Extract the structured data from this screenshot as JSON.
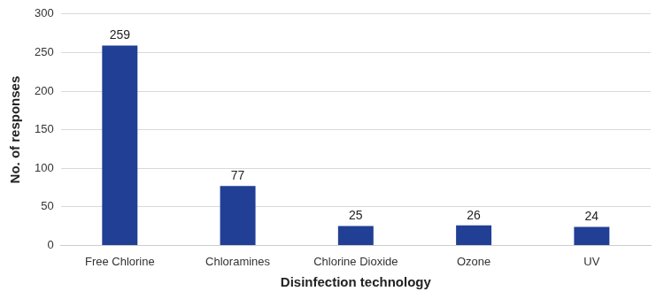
{
  "chart_data": {
    "type": "bar",
    "categories": [
      "Free Chlorine",
      "Chloramines",
      "Chlorine Dioxide",
      "Ozone",
      "UV"
    ],
    "values": [
      259,
      77,
      25,
      26,
      24
    ],
    "color": "#213f94",
    "x_label": "Disinfection technology",
    "y_label": "No. of responses",
    "ylim": [
      0,
      300
    ],
    "yticks": [
      0,
      50,
      100,
      150,
      200,
      250,
      300
    ],
    "grid": true,
    "data_labels": true
  }
}
